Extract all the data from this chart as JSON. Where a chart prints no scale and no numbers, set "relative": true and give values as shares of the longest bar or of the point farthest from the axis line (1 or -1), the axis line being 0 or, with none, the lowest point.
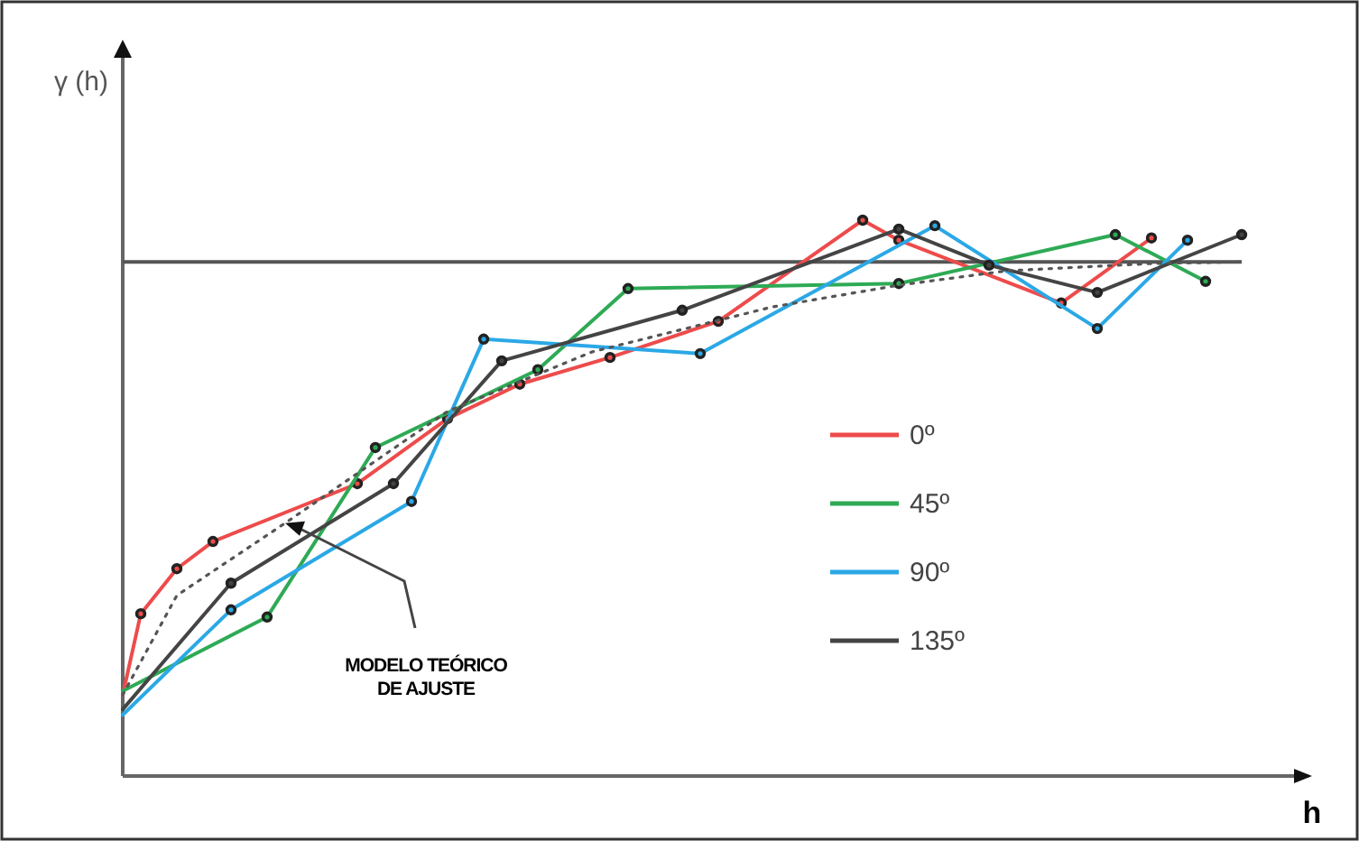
{
  "chart_data": {
    "type": "line",
    "relative": true,
    "xlabel": "h",
    "ylabel": "γ (h)",
    "marker": "circle",
    "legend": "right",
    "categories": [
      null,
      null,
      null,
      null,
      null,
      null,
      null,
      null,
      null,
      null,
      null,
      null,
      null,
      null,
      null,
      null,
      null,
      null,
      null,
      null,
      null,
      null,
      null,
      null,
      null,
      null,
      null,
      null,
      null,
      null,
      null,
      null,
      null,
      null,
      null,
      null,
      null,
      null,
      null,
      null,
      null,
      null,
      null,
      null,
      null,
      null,
      null,
      null,
      null,
      null,
      null,
      null,
      null,
      null,
      null,
      null,
      null,
      null,
      null,
      null,
      null,
      null,
      null,
      null,
      null,
      null
    ],
    "series": [
      {
        "name": "0º",
        "color": "#ee4b4b",
        "values": [
          0.146,
          0.292,
          null,
          0.373,
          null,
          0.422,
          null,
          null,
          null,
          null,
          null,
          null,
          null,
          0.526,
          null,
          null,
          null,
          null,
          0.643,
          null,
          null,
          null,
          0.705,
          null,
          null,
          null,
          null,
          0.753,
          null,
          null,
          null,
          null,
          null,
          0.818,
          null,
          null,
          null,
          null,
          null,
          null,
          null,
          1,
          null,
          0.964,
          null,
          null,
          null,
          null,
          null,
          null,
          null,
          null,
          0.851,
          null,
          null,
          null,
          null,
          0.968,
          null,
          null,
          null,
          null,
          null,
          null,
          null,
          null
        ]
      },
      {
        "name": "45º",
        "color": "#2eaa55",
        "values": [
          0.153,
          null,
          null,
          null,
          null,
          null,
          null,
          null,
          0.286,
          null,
          null,
          null,
          null,
          null,
          0.591,
          null,
          null,
          null,
          null,
          null,
          null,
          null,
          null,
          0.731,
          null,
          null,
          null,
          null,
          0.877,
          null,
          null,
          null,
          null,
          null,
          null,
          null,
          null,
          null,
          null,
          null,
          null,
          null,
          null,
          0.886,
          null,
          null,
          null,
          null,
          null,
          null,
          null,
          null,
          null,
          null,
          null,
          0.974,
          null,
          null,
          null,
          null,
          0.89,
          null,
          null,
          null,
          null,
          null
        ]
      },
      {
        "name": "90º",
        "color": "#2ba8e6",
        "values": [
          0.11,
          null,
          null,
          null,
          null,
          null,
          0.299,
          null,
          null,
          null,
          null,
          null,
          null,
          null,
          null,
          null,
          0.494,
          null,
          null,
          null,
          0.786,
          null,
          null,
          null,
          null,
          null,
          null,
          null,
          null,
          null,
          null,
          null,
          0.76,
          null,
          null,
          null,
          null,
          null,
          null,
          null,
          null,
          null,
          null,
          null,
          null,
          0.99,
          null,
          null,
          null,
          null,
          null,
          null,
          null,
          null,
          0.805,
          null,
          null,
          null,
          null,
          0.964,
          null,
          null,
          null,
          null,
          null,
          null
        ]
      },
      {
        "name": "135º",
        "color": "#444444",
        "values": [
          0.12,
          null,
          null,
          null,
          null,
          null,
          0.347,
          null,
          null,
          null,
          null,
          null,
          null,
          null,
          null,
          0.526,
          null,
          null,
          null,
          null,
          null,
          0.747,
          null,
          null,
          null,
          null,
          null,
          null,
          null,
          null,
          null,
          0.838,
          null,
          null,
          null,
          null,
          null,
          null,
          null,
          null,
          null,
          null,
          null,
          0.984,
          null,
          null,
          null,
          null,
          0.919,
          null,
          null,
          null,
          null,
          null,
          0.87,
          null,
          null,
          null,
          null,
          null,
          null,
          null,
          0.974,
          null,
          null,
          null
        ]
      },
      {
        "color": "#555555",
        "line_style": "dotted",
        "marker": "none",
        "values": [
          0.146,
          null,
          null,
          0.325,
          null,
          null,
          null,
          null,
          null,
          0.455,
          null,
          null,
          null,
          null,
          null,
          null,
          null,
          null,
          0.656,
          null,
          null,
          null,
          null,
          null,
          null,
          null,
          0.763,
          null,
          null,
          null,
          null,
          null,
          null,
          null,
          null,
          null,
          0.844,
          null,
          null,
          null,
          null,
          null,
          null,
          0.883,
          null,
          null,
          null,
          null,
          null,
          0.909,
          null,
          null,
          null,
          null,
          null,
          null,
          null,
          0.922,
          null,
          null,
          null,
          null,
          0.925,
          null,
          null,
          null
        ]
      }
    ],
    "ref_lines": [
      {
        "axis": "y",
        "value": 0.925,
        "color": "#555555"
      }
    ],
    "annotations": [
      "MODELO TEÓRICO\nDE AJUSTE"
    ]
  }
}
